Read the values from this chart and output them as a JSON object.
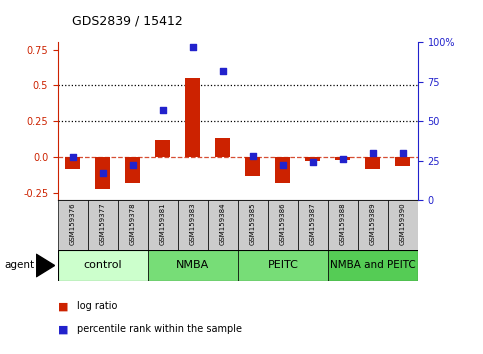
{
  "title": "GDS2839 / 15412",
  "samples": [
    "GSM159376",
    "GSM159377",
    "GSM159378",
    "GSM159381",
    "GSM159383",
    "GSM159384",
    "GSM159385",
    "GSM159386",
    "GSM159387",
    "GSM159388",
    "GSM159389",
    "GSM159390"
  ],
  "log_ratio": [
    -0.08,
    -0.22,
    -0.18,
    0.12,
    0.55,
    0.13,
    -0.13,
    -0.18,
    -0.03,
    -0.02,
    -0.08,
    -0.06
  ],
  "percentile_rank": [
    27,
    17,
    22,
    57,
    97,
    82,
    28,
    22,
    24,
    26,
    30,
    30
  ],
  "groups": [
    {
      "label": "control",
      "start": 0,
      "end": 3,
      "color": "#ccffcc"
    },
    {
      "label": "NMBA",
      "start": 3,
      "end": 6,
      "color": "#77dd77"
    },
    {
      "label": "PEITC",
      "start": 6,
      "end": 9,
      "color": "#77dd77"
    },
    {
      "label": "NMBA and PEITC",
      "start": 9,
      "end": 12,
      "color": "#55cc55"
    }
  ],
  "ylim_left": [
    -0.3,
    0.8
  ],
  "ylim_right": [
    0,
    100
  ],
  "yticks_left": [
    -0.25,
    0.0,
    0.25,
    0.5,
    0.75
  ],
  "yticks_right": [
    0,
    25,
    50,
    75,
    100
  ],
  "bar_color": "#cc2200",
  "dot_color": "#2222cc",
  "dashed_line_color": "#cc2200",
  "sample_box_color": "#cccccc"
}
